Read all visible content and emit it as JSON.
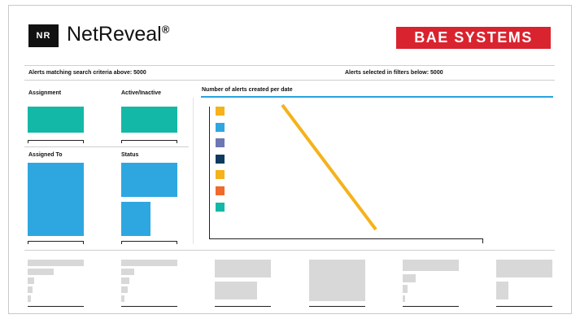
{
  "header": {
    "logo_text": "NR",
    "app_name": "NetReveal",
    "app_mark": "®",
    "brand": "BAE SYSTEMS",
    "brand_color": "#d9232e"
  },
  "summary": {
    "matching": "Alerts matching search criteria above: 5000",
    "selected": "Alerts selected in filters below: 5000"
  },
  "filters": {
    "assignment": "Assignment",
    "active_inactive": "Active/Inactive",
    "assigned_to": "Assigned To",
    "status": "Status"
  },
  "chart_data": {
    "type": "line",
    "title": "Number of alerts created per date",
    "legend_colors": [
      "#f5b21b",
      "#2ea7e0",
      "#6d77b3",
      "#0e3a5e",
      "#f5b21b",
      "#f06a2b",
      "#14b8a6"
    ],
    "series_color": "#f5b21b"
  },
  "colors": {
    "teal": "#14b8a6",
    "blue": "#2ea7e0",
    "grey": "#d8d8d8"
  }
}
